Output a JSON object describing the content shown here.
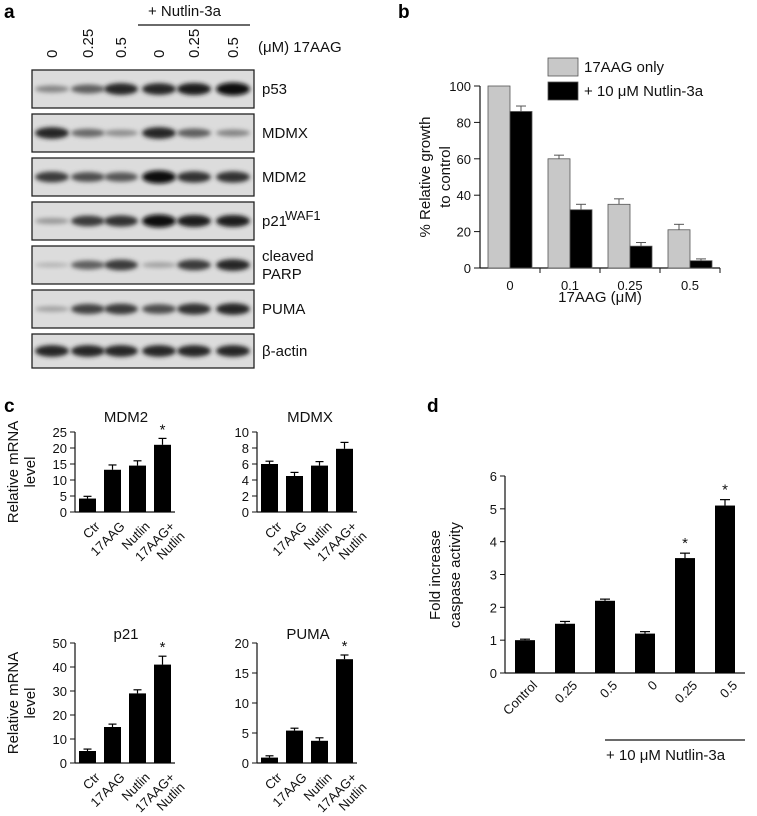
{
  "panels": {
    "a": {
      "letter": "a",
      "treatment_label": "+ Nutlin-3a",
      "unit_label": "(μM) 17AAG",
      "lanes": [
        "0",
        "0.25",
        "0.5",
        "0",
        "0.25",
        "0.5"
      ],
      "blots": [
        {
          "name": "p53",
          "sup": ""
        },
        {
          "name": "MDMX",
          "sup": ""
        },
        {
          "name": "MDM2",
          "sup": ""
        },
        {
          "name": "p21",
          "sup": "WAF1"
        },
        {
          "name": "cleaved",
          "line2": "PARP",
          "sup": ""
        },
        {
          "name": "PUMA",
          "sup": ""
        },
        {
          "name": "β-actin",
          "sup": ""
        }
      ],
      "band_intensity": [
        [
          0.35,
          0.55,
          0.85,
          0.85,
          0.9,
          1.0
        ],
        [
          0.85,
          0.5,
          0.3,
          0.85,
          0.55,
          0.35
        ],
        [
          0.75,
          0.65,
          0.6,
          1.0,
          0.8,
          0.8
        ],
        [
          0.25,
          0.75,
          0.8,
          1.0,
          0.9,
          0.9
        ],
        [
          0.1,
          0.55,
          0.75,
          0.2,
          0.75,
          0.85
        ],
        [
          0.2,
          0.7,
          0.75,
          0.65,
          0.8,
          0.85
        ],
        [
          0.85,
          0.85,
          0.85,
          0.85,
          0.85,
          0.85
        ]
      ]
    },
    "b": {
      "letter": "b"
    },
    "c": {
      "letter": "c"
    },
    "d": {
      "letter": "d"
    }
  },
  "chart_data": [
    {
      "id": "b",
      "type": "bar",
      "categories": [
        "0",
        "0.1",
        "0.25",
        "0.5"
      ],
      "series": [
        {
          "name": "17AAG only",
          "values": [
            100,
            60,
            35,
            21
          ],
          "errors": [
            0,
            2,
            3,
            3
          ],
          "color": "#c8c8c8"
        },
        {
          "name": "+ 10 μM Nutlin-3a",
          "values": [
            86,
            32,
            12,
            4
          ],
          "errors": [
            3,
            3,
            2,
            1
          ],
          "color": "#000000"
        }
      ],
      "xlabel": "17AAG (μM)",
      "ylabel_lines": [
        "% Relative growth",
        "to control"
      ],
      "ylim": [
        0,
        100
      ],
      "yticks": [
        0,
        20,
        40,
        60,
        80,
        100
      ],
      "legend": "top-right"
    },
    {
      "id": "c1",
      "type": "bar",
      "title": "MDM2",
      "categories": [
        "Ctr",
        "17AAG",
        "Nutlin",
        "17AAG+\nNutlin"
      ],
      "values": [
        4.2,
        13.2,
        14.5,
        21
      ],
      "errors": [
        0.7,
        1.5,
        1.5,
        2
      ],
      "star": [
        false,
        false,
        false,
        true
      ],
      "ylim": [
        0,
        25
      ],
      "yticks": [
        0,
        5,
        10,
        15,
        20,
        25
      ],
      "ylabel_lines": [
        "Relative mRNA",
        "level"
      ]
    },
    {
      "id": "c2",
      "type": "bar",
      "title": "MDMX",
      "categories": [
        "Ctr",
        "17AAG",
        "Nutlin",
        "17AAG+\nNutlin"
      ],
      "values": [
        6,
        4.5,
        5.8,
        7.9
      ],
      "errors": [
        0.35,
        0.45,
        0.5,
        0.8
      ],
      "star": [
        false,
        false,
        false,
        false
      ],
      "ylim": [
        0,
        10
      ],
      "yticks": [
        0,
        2,
        4,
        6,
        8,
        10
      ],
      "ylabel_lines": []
    },
    {
      "id": "c3",
      "type": "bar",
      "title": "p21",
      "categories": [
        "Ctr",
        "17AAG",
        "Nutlin",
        "17AAG+\nNutlin"
      ],
      "values": [
        5,
        15,
        29,
        41
      ],
      "errors": [
        0.8,
        1.2,
        1.5,
        3.5
      ],
      "star": [
        false,
        false,
        false,
        true
      ],
      "ylim": [
        0,
        50
      ],
      "yticks": [
        0,
        10,
        20,
        30,
        40,
        50
      ],
      "ylabel_lines": [
        "Relative mRNA",
        "level"
      ]
    },
    {
      "id": "c4",
      "type": "bar",
      "title": "PUMA",
      "categories": [
        "Ctr",
        "17AAG",
        "Nutlin",
        "17AAG+\nNutlin"
      ],
      "values": [
        0.9,
        5.4,
        3.7,
        17.3
      ],
      "errors": [
        0.3,
        0.4,
        0.5,
        0.7
      ],
      "star": [
        false,
        false,
        false,
        true
      ],
      "ylim": [
        0,
        20
      ],
      "yticks": [
        0,
        5,
        10,
        15,
        20
      ],
      "ylabel_lines": []
    },
    {
      "id": "d",
      "type": "bar",
      "categories": [
        "Control",
        "0.25",
        "0.5",
        "0",
        "0.25",
        "0.5"
      ],
      "values": [
        1.0,
        1.5,
        2.2,
        1.2,
        3.5,
        5.1
      ],
      "errors": [
        0.03,
        0.07,
        0.05,
        0.06,
        0.15,
        0.18
      ],
      "star": [
        false,
        false,
        false,
        false,
        true,
        true
      ],
      "ylim": [
        0,
        6
      ],
      "yticks": [
        0,
        1,
        2,
        3,
        4,
        5,
        6
      ],
      "ylabel_lines": [
        "Fold increase",
        "caspase activity"
      ],
      "group_label": "+ 10 μM Nutlin-3a"
    }
  ]
}
